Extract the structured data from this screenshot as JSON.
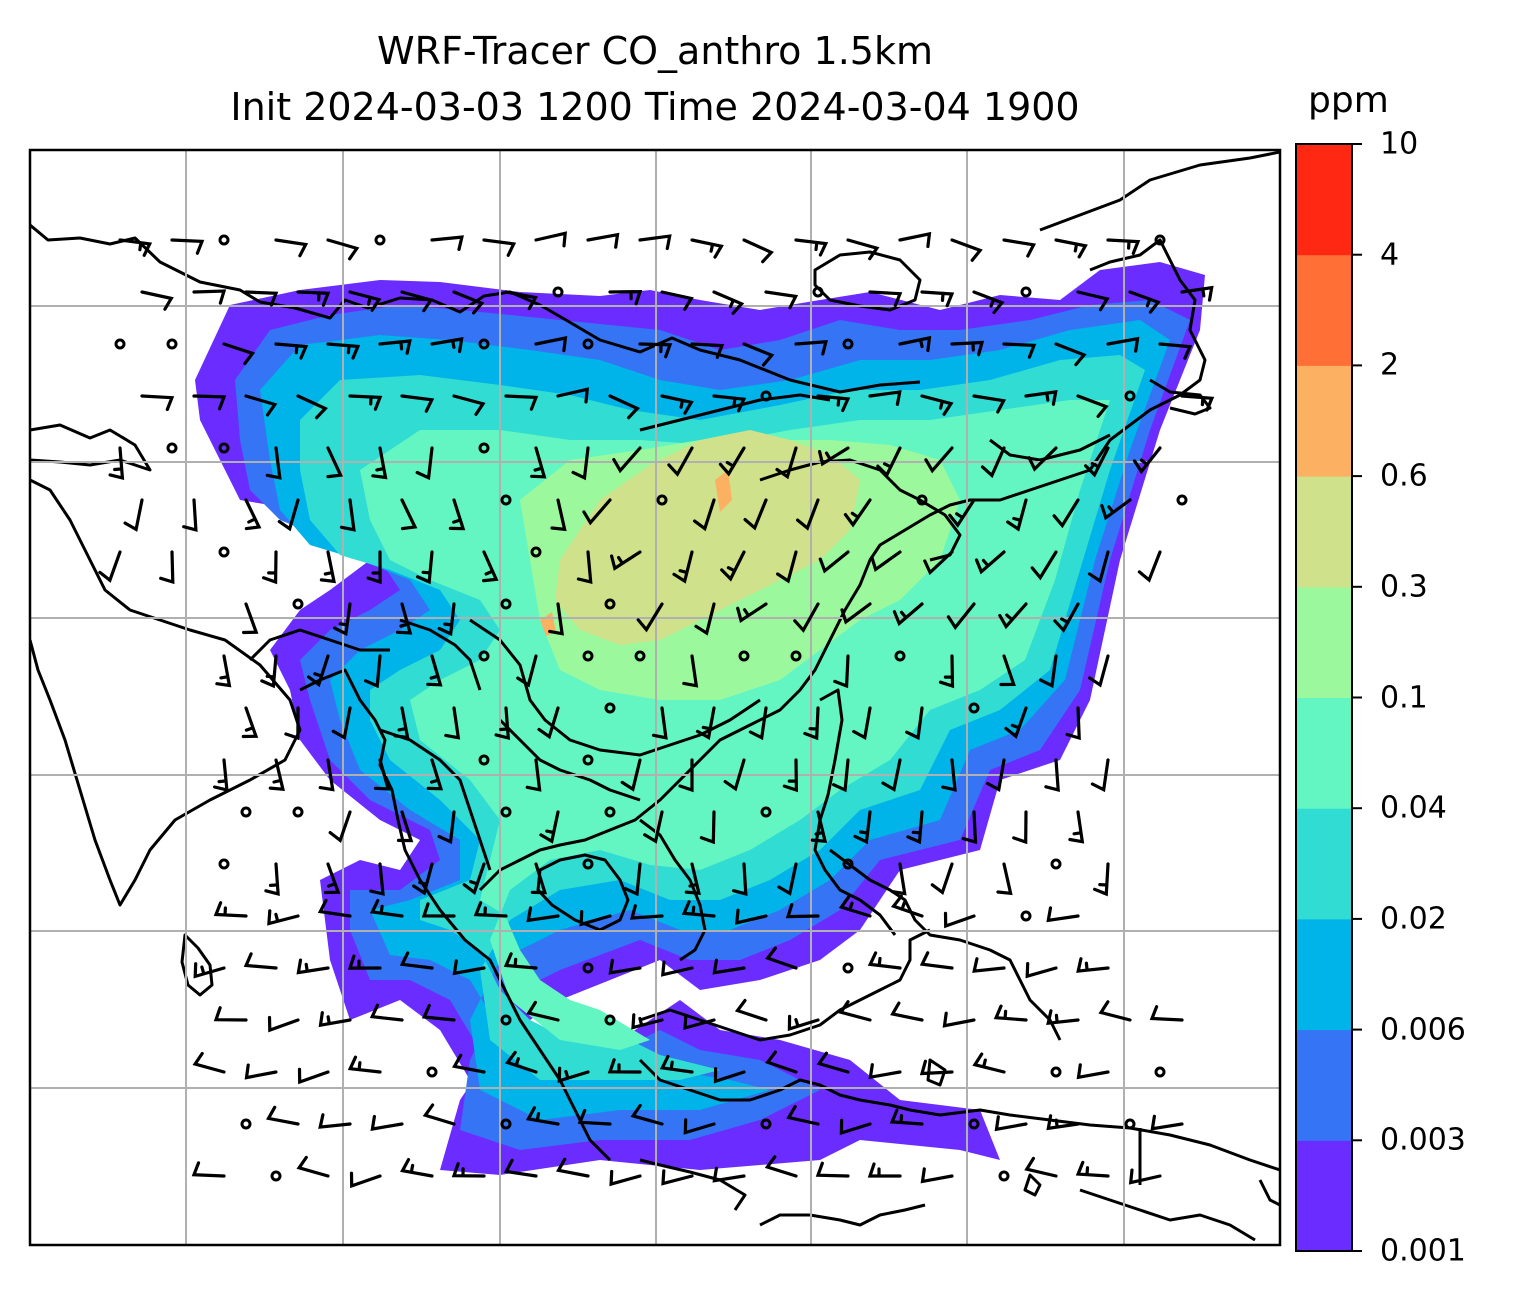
{
  "title": {
    "line1": "WRF-Tracer CO_anthro 1.5km",
    "line2": "Init 2024-03-03 1200 Time 2024-03-04 1900"
  },
  "colorbar": {
    "label": "ppm",
    "ticks": [
      "0.001",
      "0.003",
      "0.006",
      "0.02",
      "0.04",
      "0.1",
      "0.3",
      "0.6",
      "2",
      "4",
      "10"
    ],
    "colors": [
      "#6a2cff",
      "#3574f5",
      "#00b3e8",
      "#31dcd2",
      "#64f6c2",
      "#9cf89c",
      "#cfe18a",
      "#fcb062",
      "#ff6f36",
      "#ff2812"
    ]
  },
  "map": {
    "field": "CO_anthro",
    "gridlines": true,
    "features": [
      "coastlines",
      "country-borders",
      "wind-barbs",
      "calm-circles",
      "tracer-concentration"
    ]
  }
}
